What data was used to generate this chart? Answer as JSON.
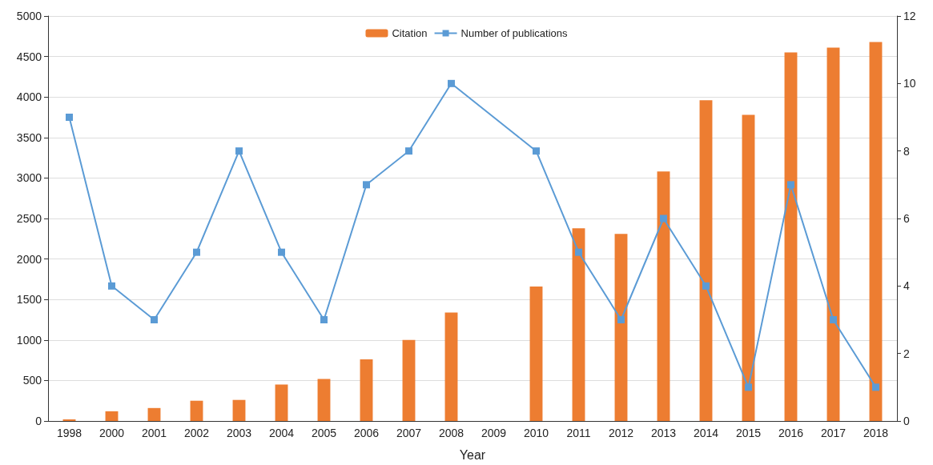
{
  "chart_data": {
    "type": "bar",
    "xlabel": "Year",
    "categories": [
      "1998",
      "2000",
      "2001",
      "2002",
      "2003",
      "2004",
      "2005",
      "2006",
      "2007",
      "2008",
      "2009",
      "2010",
      "2011",
      "2012",
      "2013",
      "2014",
      "2015",
      "2016",
      "2017",
      "2018"
    ],
    "series": [
      {
        "name": "Citation",
        "color": "#ed7d31",
        "values": [
          20,
          120,
          160,
          250,
          260,
          450,
          520,
          760,
          1000,
          1340,
          null,
          1660,
          2380,
          2310,
          3080,
          3960,
          3780,
          4550,
          4610,
          4680
        ]
      },
      {
        "name": "Number of publications",
        "type": "line",
        "axis": "y2",
        "color": "#5b9bd5",
        "marker": "square",
        "values": [
          9,
          4,
          3,
          5,
          8,
          5,
          3,
          7,
          8,
          10,
          null,
          8,
          5,
          3,
          6,
          4,
          1,
          7,
          3,
          1
        ]
      }
    ],
    "ylim": [
      0,
      5000
    ],
    "yticks": [
      0,
      500,
      1000,
      1500,
      2000,
      2500,
      3000,
      3500,
      4000,
      4500,
      5000
    ],
    "y2lim": [
      0,
      12
    ],
    "y2ticks": [
      0,
      2,
      4,
      6,
      8,
      10,
      12
    ],
    "grid": "y",
    "legend": "top"
  }
}
